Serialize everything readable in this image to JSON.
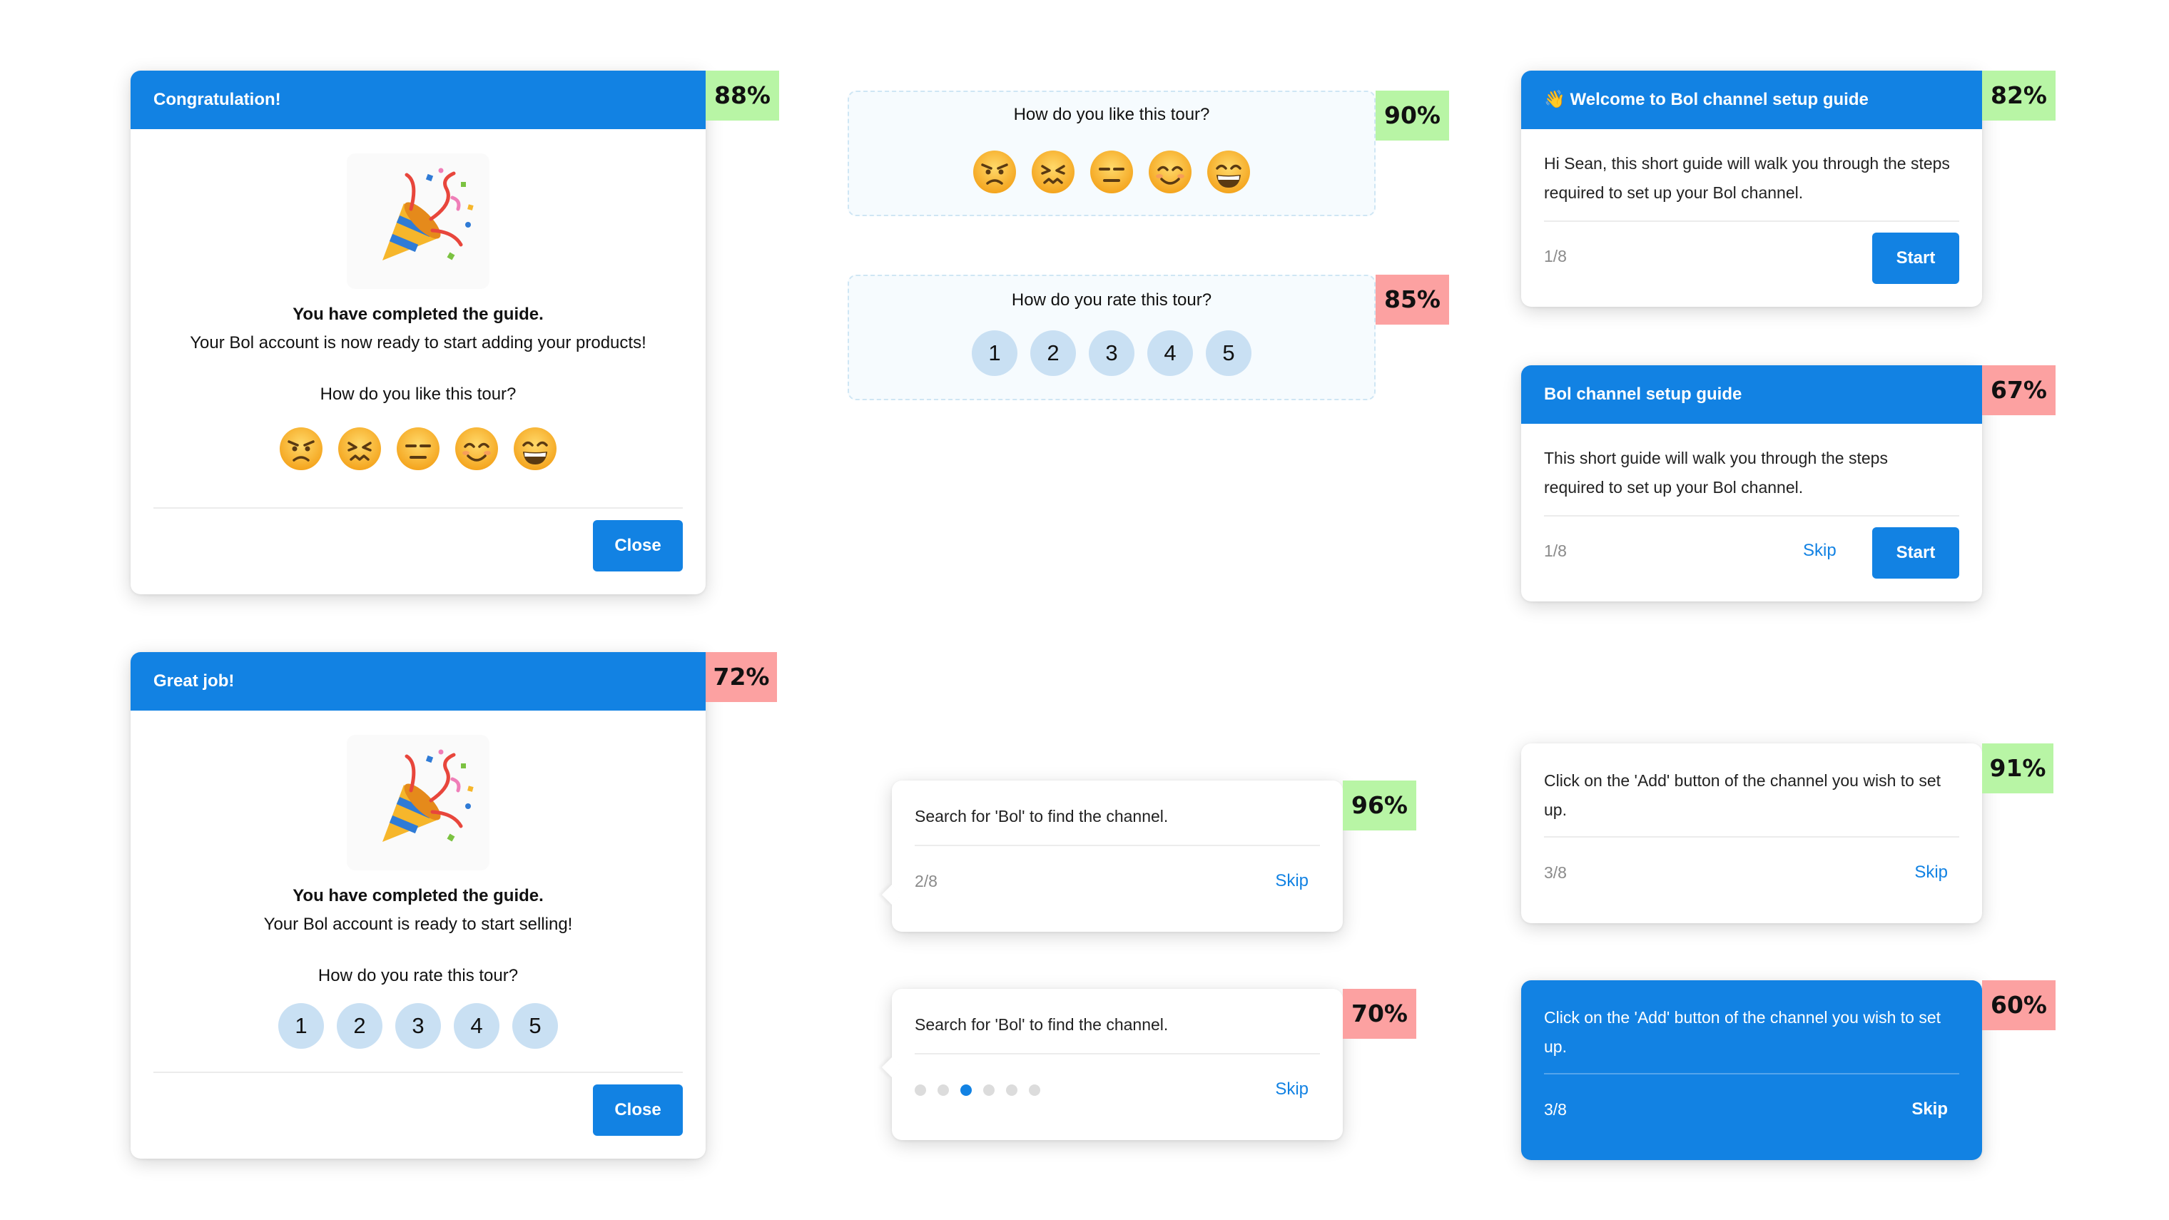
{
  "card_congrats": {
    "title": "Congratulation!",
    "badge": "88%",
    "message_bold": "You have completed the guide.",
    "message": "Your Bol account is now ready to start adding your products!",
    "question": "How do you like this tour?",
    "emojis": [
      "angry-face-icon",
      "confounded-face-icon",
      "expressionless-face-icon",
      "smiling-face-icon",
      "grinning-face-icon"
    ],
    "close_label": "Close"
  },
  "card_great_job": {
    "title": "Great job!",
    "badge": "72%",
    "message_bold": "You have completed the guide.",
    "message": "Your Bol account is ready to start selling!",
    "question": "How do you rate this tour?",
    "ratings": [
      "1",
      "2",
      "3",
      "4",
      "5"
    ],
    "close_label": "Close"
  },
  "widget_emoji": {
    "question": "How do you like this tour?",
    "badge": "90%"
  },
  "widget_rating": {
    "question": "How do you rate this tour?",
    "ratings": [
      "1",
      "2",
      "3",
      "4",
      "5"
    ],
    "badge": "85%"
  },
  "tooltip_step2_a": {
    "text": "Search for 'Bol' to find the channel.",
    "step": "2/8",
    "skip_label": "Skip",
    "badge": "96%"
  },
  "tooltip_step2_b": {
    "text": "Search for 'Bol' to find the channel.",
    "progress": {
      "current": 3,
      "total": 6
    },
    "skip_label": "Skip",
    "badge": "70%"
  },
  "card_welcome": {
    "title": "👋 Welcome to Bol channel setup guide",
    "text": "Hi Sean, this short guide will walk you through the steps required to set up your Bol channel.",
    "step": "1/8",
    "start_label": "Start",
    "badge": "82%"
  },
  "card_setup": {
    "title": "Bol channel setup guide",
    "text": "This short guide will walk you through the steps required to set up your Bol channel.",
    "step": "1/8",
    "skip_label": "Skip",
    "start_label": "Start",
    "badge": "67%"
  },
  "card_step3_white": {
    "text": "Click on the 'Add' button of the channel you wish to set up.",
    "step": "3/8",
    "skip_label": "Skip",
    "badge": "91%"
  },
  "card_step3_blue": {
    "text": "Click on the 'Add' button of the channel you wish to set up.",
    "step": "3/8",
    "skip_label": "Skip",
    "badge": "60%"
  },
  "colors": {
    "primary": "#1282e3",
    "badge_green": "#b8f5a5",
    "badge_red": "#fca1a1",
    "rating_circle": "#c9e0f3"
  }
}
